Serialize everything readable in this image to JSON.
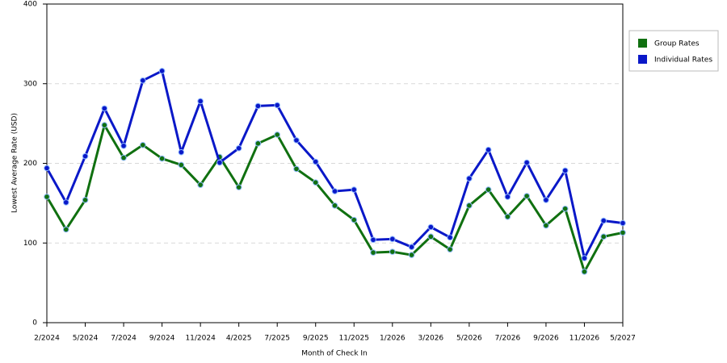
{
  "chart_data": {
    "type": "line",
    "x_label": "Month of Check In",
    "y_label": "Lowest Average Rate (USD)",
    "categories": [
      "2/2024",
      null,
      "5/2024",
      null,
      "7/2024",
      null,
      "9/2024",
      null,
      "11/2024",
      null,
      "4/2025",
      null,
      "7/2025",
      null,
      "9/2025",
      null,
      "11/2025",
      null,
      "1/2026",
      null,
      "3/2026",
      null,
      "5/2026",
      null,
      "7/2026",
      null,
      "9/2026",
      null,
      "11/2026",
      null,
      "5/2027"
    ],
    "series": [
      {
        "name": "Group Rates",
        "color": "#107010",
        "values": [
          158,
          117,
          154,
          248,
          207,
          223,
          206,
          198,
          173,
          208,
          170,
          225,
          236,
          193,
          176,
          147,
          129,
          88,
          89,
          85,
          108,
          92,
          147,
          167,
          133,
          159,
          122,
          143,
          64,
          108,
          113
        ]
      },
      {
        "name": "Individual Rates",
        "color": "#0a18c8",
        "values": [
          194,
          151,
          209,
          269,
          222,
          304,
          316,
          214,
          278,
          201,
          219,
          272,
          273,
          229,
          202,
          165,
          167,
          104,
          105,
          95,
          120,
          107,
          181,
          217,
          158,
          201,
          154,
          191,
          81,
          128,
          125
        ]
      }
    ],
    "ylim": [
      0,
      400
    ],
    "yticks": [
      0,
      100,
      200,
      300,
      400
    ],
    "grid": true,
    "legend": "right"
  }
}
